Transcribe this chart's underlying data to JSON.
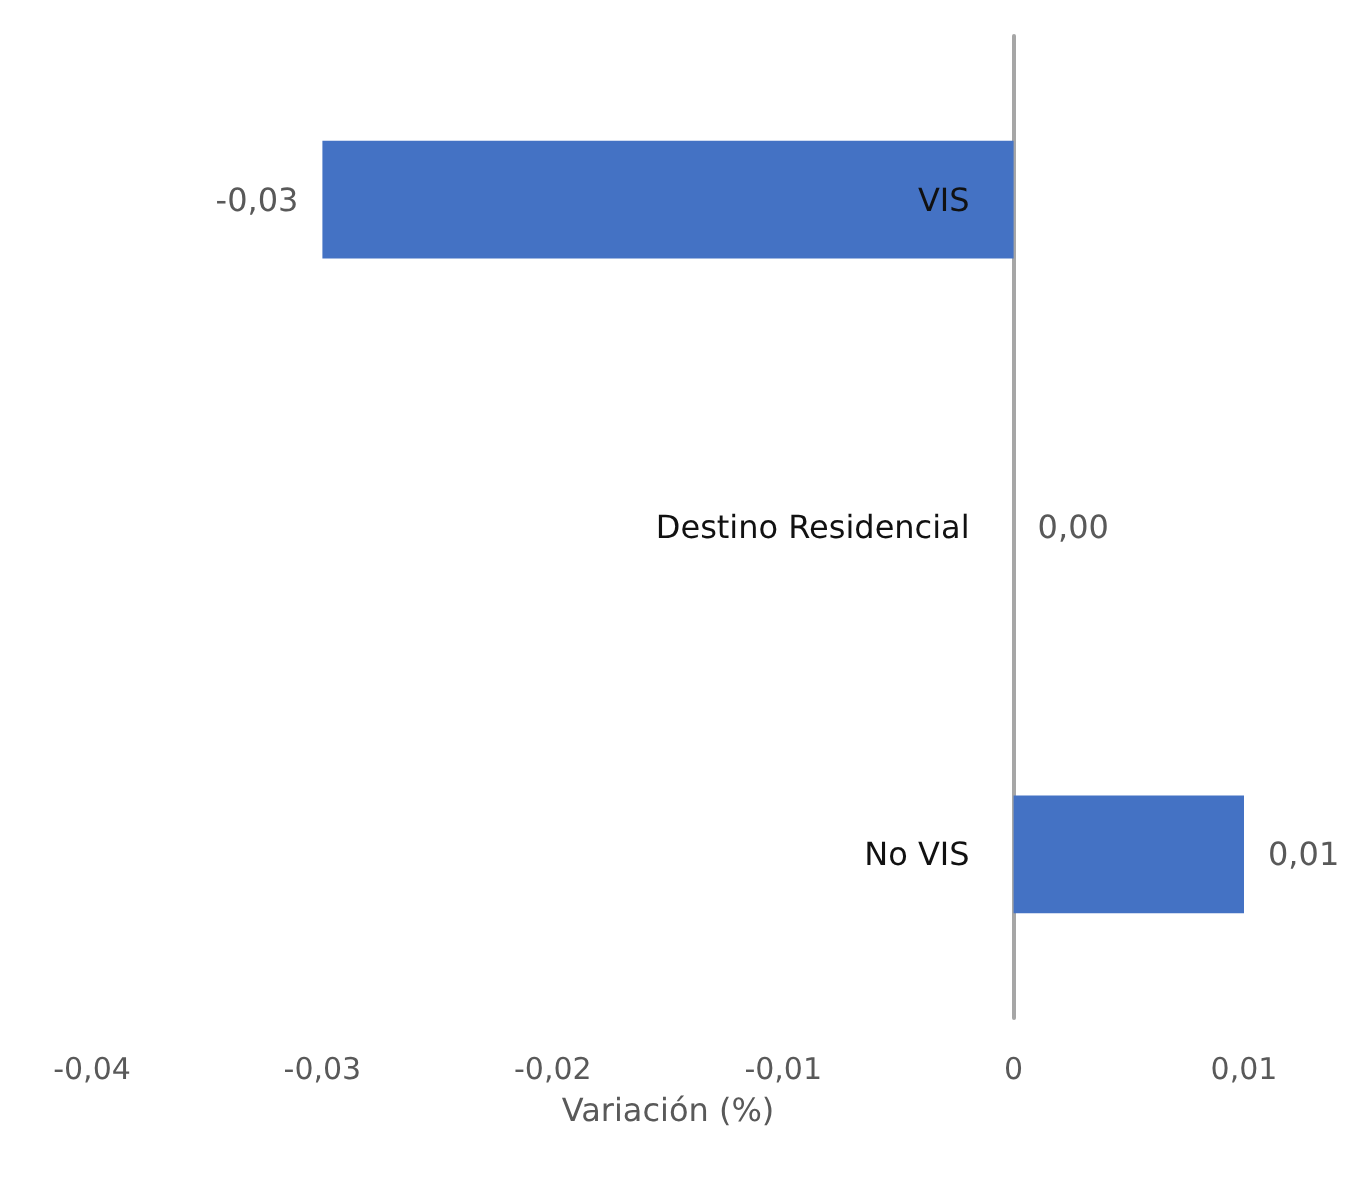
{
  "chart_data": {
    "type": "bar",
    "orientation": "horizontal",
    "xlabel": "Variación (%)",
    "categories": [
      "VIS",
      "Destino Residencial",
      "No VIS"
    ],
    "values": [
      -0.03,
      0.0,
      0.01
    ],
    "value_labels": [
      "-0,03",
      "0,00",
      "0,01"
    ],
    "color": "#4472c4",
    "xlim": [
      -0.04,
      0.01
    ],
    "xticks": [
      {
        "value": -0.04,
        "label": "-0,04"
      },
      {
        "value": -0.03,
        "label": "-0,03"
      },
      {
        "value": -0.02,
        "label": "-0,02"
      },
      {
        "value": -0.01,
        "label": "-0,01"
      },
      {
        "value": 0,
        "label": "0"
      },
      {
        "value": 0.01,
        "label": "0,01"
      }
    ],
    "tick_labels": "x"
  }
}
